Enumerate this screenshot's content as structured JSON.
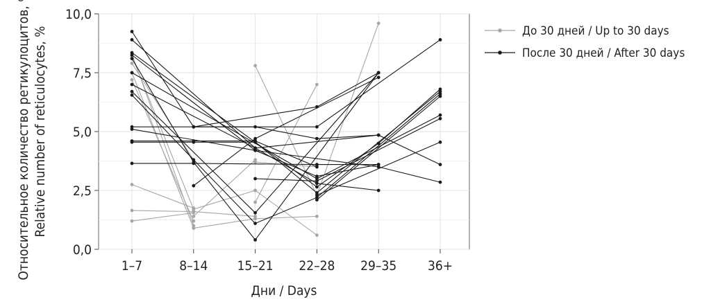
{
  "chart_data": {
    "type": "line",
    "title": "",
    "xlabel": "Дни / Days",
    "ylabel_line1": "Относительное количество ретикулоцитов, % /",
    "ylabel_line2": "Relative number of reticulocytes, %",
    "categories": [
      "1–7",
      "8–14",
      "15–21",
      "22–28",
      "29–35",
      "36+"
    ],
    "yticks": [
      {
        "value": 0,
        "label": "0,0"
      },
      {
        "value": 2.5,
        "label": "2,5"
      },
      {
        "value": 5,
        "label": "5,0"
      },
      {
        "value": 7.5,
        "label": "7,5"
      },
      {
        "value": 10,
        "label": "10,0"
      }
    ],
    "ylim": [
      0,
      10
    ],
    "grid": true,
    "legend_position": "right",
    "groups": [
      {
        "name": "До 30 дней / Up to 30 days",
        "color": "#a6a6a6",
        "lines": [
          [
            [
              0,
              8.3
            ],
            [
              1,
              1.0
            ]
          ],
          [
            [
              0,
              8.2
            ],
            [
              1,
              1.7
            ]
          ],
          [
            [
              0,
              7.9
            ],
            [
              1,
              3.8
            ]
          ],
          [
            [
              0,
              7.5
            ],
            [
              1,
              0.9
            ]
          ],
          [
            [
              0,
              7.2
            ],
            [
              1,
              1.2
            ]
          ],
          [
            [
              0,
              2.75
            ],
            [
              1,
              1.75
            ]
          ],
          [
            [
              0,
              1.65
            ],
            [
              1,
              1.6
            ]
          ],
          [
            [
              0,
              1.2
            ],
            [
              1,
              1.55
            ]
          ],
          [
            [
              1,
              1.7
            ],
            [
              2,
              2.5
            ]
          ],
          [
            [
              1,
              0.9
            ],
            [
              2,
              1.3
            ]
          ],
          [
            [
              1,
              1.6
            ],
            [
              2,
              1.4
            ]
          ],
          [
            [
              1,
              1.4
            ],
            [
              2,
              3.8
            ]
          ],
          [
            [
              2,
              7.8
            ],
            [
              3,
              2.3
            ]
          ],
          [
            [
              2,
              2.0
            ],
            [
              3,
              7.0
            ]
          ],
          [
            [
              2,
              1.3
            ],
            [
              3,
              1.4
            ]
          ],
          [
            [
              2,
              2.5
            ],
            [
              3,
              0.6
            ]
          ],
          [
            [
              2,
              3.7
            ],
            [
              3,
              3.5
            ]
          ],
          [
            [
              3,
              2.3
            ],
            [
              4,
              9.6
            ]
          ],
          [
            [
              3,
              3.6
            ],
            [
              4,
              3.6
            ]
          ]
        ]
      },
      {
        "name": "После 30 дней / After 30 days",
        "color": "#1a1a1a",
        "lines": [
          [
            [
              0,
              9.25
            ],
            [
              1,
              5.2
            ],
            [
              3,
              5.2
            ],
            [
              5,
              8.9
            ]
          ],
          [
            [
              0,
              8.9
            ],
            [
              2,
              4.3
            ],
            [
              4,
              4.85
            ],
            [
              5,
              3.6
            ]
          ],
          [
            [
              0,
              8.35
            ],
            [
              3,
              2.65
            ],
            [
              4,
              4.5
            ],
            [
              5,
              6.8
            ]
          ],
          [
            [
              0,
              8.25
            ],
            [
              2,
              4.2
            ],
            [
              4,
              3.5
            ],
            [
              5,
              2.85
            ]
          ],
          [
            [
              0,
              8.1
            ],
            [
              1,
              3.7
            ],
            [
              2,
              0.4
            ],
            [
              4,
              7.5
            ]
          ],
          [
            [
              0,
              7.5
            ],
            [
              3,
              3.0
            ],
            [
              5,
              5.7
            ]
          ],
          [
            [
              0,
              7.0
            ],
            [
              2,
              4.3
            ],
            [
              3,
              2.8
            ],
            [
              4,
              2.5
            ]
          ],
          [
            [
              0,
              6.7
            ],
            [
              2,
              1.55
            ],
            [
              4,
              7.5
            ]
          ],
          [
            [
              0,
              6.55
            ],
            [
              1,
              3.8
            ],
            [
              2,
              1.1
            ],
            [
              3,
              2.2
            ],
            [
              5,
              6.6
            ]
          ],
          [
            [
              0,
              5.2
            ],
            [
              1,
              5.2
            ],
            [
              2,
              5.2
            ],
            [
              3,
              4.7
            ],
            [
              4,
              4.85
            ]
          ],
          [
            [
              0,
              5.1
            ],
            [
              2,
              4.2
            ],
            [
              3,
              3.1
            ],
            [
              4,
              3.6
            ]
          ],
          [
            [
              0,
              4.6
            ],
            [
              1,
              4.6
            ],
            [
              2,
              4.6
            ],
            [
              3,
              3.5
            ]
          ],
          [
            [
              0,
              4.55
            ],
            [
              1,
              4.55
            ],
            [
              2,
              4.55
            ],
            [
              3,
              2.4
            ],
            [
              5,
              6.7
            ]
          ],
          [
            [
              0,
              3.65
            ],
            [
              1,
              3.65
            ],
            [
              3,
              3.6
            ],
            [
              4,
              3.6
            ]
          ],
          [
            [
              1,
              2.7
            ],
            [
              2,
              4.7
            ],
            [
              4,
              7.3
            ]
          ],
          [
            [
              1,
              5.2
            ],
            [
              3,
              6.05
            ],
            [
              4,
              7.5
            ]
          ],
          [
            [
              2,
              3.0
            ],
            [
              3,
              2.9
            ],
            [
              5,
              5.55
            ]
          ],
          [
            [
              3,
              2.3
            ],
            [
              5,
              4.55
            ]
          ],
          [
            [
              3,
              2.1
            ],
            [
              5,
              6.5
            ]
          ]
        ]
      }
    ]
  }
}
